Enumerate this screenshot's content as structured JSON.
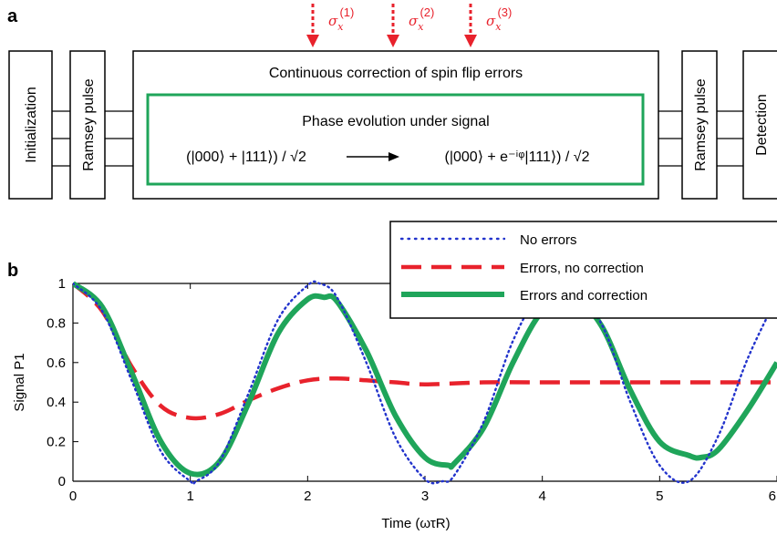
{
  "panel_a": {
    "label": "a",
    "stages": {
      "initialization": "Initialization",
      "ramsey_left": "Ramsey pulse",
      "ramsey_right": "Ramsey pulse",
      "detection": "Detection"
    },
    "correction_box_title": "Continuous correction of spin flip errors",
    "phase_box_title": "Phase evolution under signal",
    "state_initial": "(|000⟩ + |111⟩) / √2",
    "state_final": "(|000⟩ + e⁻ⁱᵠ|111⟩) / √2",
    "pulses": [
      {
        "symbol": "σ",
        "sub": "x",
        "sup": "(1)"
      },
      {
        "symbol": "σ",
        "sub": "x",
        "sup": "(2)"
      },
      {
        "symbol": "σ",
        "sub": "x",
        "sup": "(3)"
      }
    ],
    "colors": {
      "pulse_arrow": "#e8222c",
      "phase_box": "#1fa55a"
    }
  },
  "panel_b": {
    "label": "b"
  },
  "chart_data": {
    "type": "line",
    "title": "",
    "xlabel": "Time (ωτR)",
    "ylabel": "Signal P1",
    "xlim": [
      0,
      6
    ],
    "ylim": [
      0,
      1
    ],
    "xticks": [
      "0",
      "1",
      "2",
      "3",
      "4",
      "5",
      "6"
    ],
    "yticks": [
      "0",
      "0.2",
      "0.4",
      "0.6",
      "0.8",
      "1"
    ],
    "legend_position": "top-right",
    "series": [
      {
        "name": "No errors",
        "style": "dotted",
        "color": "#2233cc",
        "x": [
          0,
          0.25,
          0.5,
          0.75,
          1.0,
          1.05,
          1.25,
          1.5,
          1.75,
          2.0,
          2.1,
          2.25,
          2.5,
          2.75,
          3.0,
          3.15,
          3.25,
          3.5,
          3.75,
          4.0,
          4.2,
          4.5,
          4.75,
          5.0,
          5.25,
          5.5,
          5.75,
          6.0
        ],
        "y": [
          1.0,
          0.86,
          0.51,
          0.15,
          0.0,
          0.0,
          0.1,
          0.45,
          0.82,
          0.99,
          1.0,
          0.93,
          0.6,
          0.22,
          0.01,
          0.0,
          0.03,
          0.3,
          0.71,
          0.97,
          1.0,
          0.8,
          0.4,
          0.08,
          0.0,
          0.23,
          0.62,
          0.93
        ]
      },
      {
        "name": "Errors, no correction",
        "style": "dashed",
        "color": "#e8222c",
        "x": [
          0,
          0.25,
          0.5,
          0.75,
          1.0,
          1.25,
          1.5,
          1.75,
          2.0,
          2.25,
          2.5,
          2.75,
          3.0,
          3.5,
          4.0,
          4.5,
          5.0,
          5.5,
          6.0
        ],
        "y": [
          1.0,
          0.86,
          0.58,
          0.38,
          0.32,
          0.34,
          0.41,
          0.47,
          0.51,
          0.52,
          0.51,
          0.5,
          0.49,
          0.5,
          0.5,
          0.5,
          0.5,
          0.5,
          0.5
        ]
      },
      {
        "name": "Errors and correction",
        "style": "solid",
        "color": "#1fa55a",
        "x": [
          0,
          0.25,
          0.5,
          0.75,
          1.0,
          1.25,
          1.5,
          1.75,
          2.0,
          2.14,
          2.25,
          2.5,
          2.75,
          3.0,
          3.2,
          3.25,
          3.5,
          3.75,
          4.0,
          4.25,
          4.5,
          4.75,
          5.0,
          5.25,
          5.35,
          5.5,
          5.75,
          6.0
        ],
        "y": [
          1.0,
          0.88,
          0.55,
          0.2,
          0.04,
          0.1,
          0.4,
          0.75,
          0.92,
          0.93,
          0.91,
          0.66,
          0.33,
          0.12,
          0.08,
          0.09,
          0.27,
          0.6,
          0.86,
          0.93,
          0.79,
          0.46,
          0.2,
          0.13,
          0.12,
          0.16,
          0.36,
          0.6
        ]
      }
    ]
  }
}
